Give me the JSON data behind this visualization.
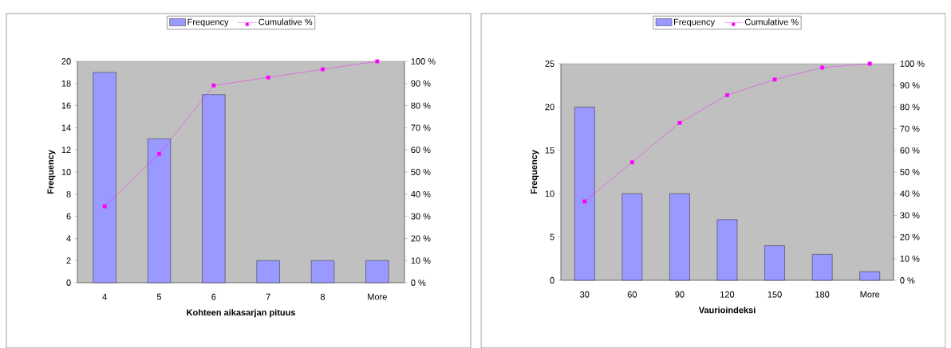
{
  "chart_data": [
    {
      "type": "bar",
      "xlabel": "Kohteen aikasarjan pituus",
      "ylabel": "Frequency",
      "categories": [
        "4",
        "5",
        "6",
        "7",
        "8",
        "More"
      ],
      "series": [
        {
          "name": "Frequency",
          "color": "#9999ff",
          "values": [
            19,
            13,
            17,
            2,
            2,
            2
          ]
        },
        {
          "name": "Cumulative %",
          "type": "line",
          "axis": "y2",
          "color": "#ff00ff",
          "values": [
            34.5,
            58.2,
            89.1,
            92.7,
            96.4,
            100
          ]
        }
      ],
      "ylim": [
        0,
        20
      ],
      "yticks": [
        0,
        2,
        4,
        6,
        8,
        10,
        12,
        14,
        16,
        18,
        20
      ],
      "y2lim": [
        0,
        100
      ],
      "y2ticks": [
        {
          "value": 0,
          "label": "0 %"
        },
        {
          "value": 10,
          "label": "10 %"
        },
        {
          "value": 20,
          "label": "20 %"
        },
        {
          "value": 30,
          "label": "30 %"
        },
        {
          "value": 40,
          "label": "40 %"
        },
        {
          "value": 50,
          "label": "50 %"
        },
        {
          "value": 60,
          "label": "60 %"
        },
        {
          "value": 70,
          "label": "70 %"
        },
        {
          "value": 80,
          "label": "80 %"
        },
        {
          "value": 90,
          "label": "90 %"
        },
        {
          "value": 100,
          "label": "100 %"
        }
      ],
      "legend": "top",
      "marker": "square"
    },
    {
      "type": "bar",
      "xlabel": "Vaurioindeksi",
      "ylabel": "Frequency",
      "categories": [
        "30",
        "60",
        "90",
        "120",
        "150",
        "180",
        "More"
      ],
      "series": [
        {
          "name": "Frequency",
          "color": "#9999ff",
          "values": [
            20,
            10,
            10,
            7,
            4,
            3,
            1
          ]
        },
        {
          "name": "Cumulative %",
          "type": "line",
          "axis": "y2",
          "color": "#ff00ff",
          "values": [
            36.4,
            54.5,
            72.7,
            85.5,
            92.7,
            98.2,
            100
          ]
        }
      ],
      "ylim": [
        0,
        25
      ],
      "yticks": [
        0,
        5,
        10,
        15,
        20,
        25
      ],
      "y2lim": [
        0,
        100
      ],
      "y2ticks": [
        {
          "value": 0,
          "label": "0 %"
        },
        {
          "value": 10,
          "label": "10 %"
        },
        {
          "value": 20,
          "label": "20 %"
        },
        {
          "value": 30,
          "label": "30 %"
        },
        {
          "value": 40,
          "label": "40 %"
        },
        {
          "value": 50,
          "label": "50 %"
        },
        {
          "value": 60,
          "label": "60 %"
        },
        {
          "value": 70,
          "label": "70 %"
        },
        {
          "value": 80,
          "label": "80 %"
        },
        {
          "value": 90,
          "label": "90 %"
        },
        {
          "value": 100,
          "label": "100 %"
        }
      ],
      "legend": "top",
      "marker": "square"
    }
  ]
}
